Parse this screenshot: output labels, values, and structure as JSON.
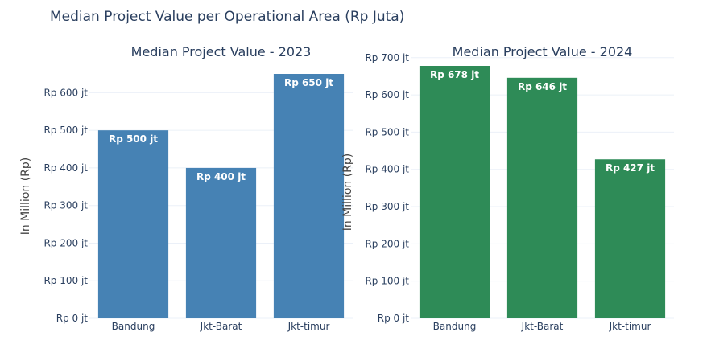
{
  "title": "Median Project Value per Operational Area (Rp Juta)",
  "ylabel": "In Million (Rp)",
  "chart_data": [
    {
      "type": "bar",
      "title": "Median Project Value - 2023",
      "categories": [
        "Bandung",
        "Jkt-Barat",
        "Jkt-timur"
      ],
      "values": [
        500,
        400,
        650
      ],
      "data_labels": [
        "Rp 500 jt",
        "Rp 400 jt",
        "Rp 650 jt"
      ],
      "ylabel": "In Million (Rp)",
      "ylim": [
        0,
        650
      ],
      "yticks": [
        0,
        100,
        200,
        300,
        400,
        500,
        600
      ],
      "ytick_labels": [
        "Rp 0 jt",
        "Rp 100 jt",
        "Rp 200 jt",
        "Rp 300 jt",
        "Rp 400 jt",
        "Rp 500 jt",
        "Rp 600 jt"
      ],
      "color": "#4682b4",
      "grid": true
    },
    {
      "type": "bar",
      "title": "Median Project Value - 2024",
      "categories": [
        "Bandung",
        "Jkt-Barat",
        "Jkt-timur"
      ],
      "values": [
        678,
        646,
        427
      ],
      "data_labels": [
        "Rp 678 jt",
        "Rp 646 jt",
        "Rp 427 jt"
      ],
      "ylabel": "In Million (Rp)",
      "ylim": [
        0,
        678
      ],
      "yticks": [
        0,
        100,
        200,
        300,
        400,
        500,
        600,
        700
      ],
      "ytick_labels": [
        "Rp 0 jt",
        "Rp 100 jt",
        "Rp 200 jt",
        "Rp 300 jt",
        "Rp 400 jt",
        "Rp 500 jt",
        "Rp 600 jt",
        "Rp 700 jt"
      ],
      "color": "#2e8b57",
      "grid": true
    }
  ]
}
